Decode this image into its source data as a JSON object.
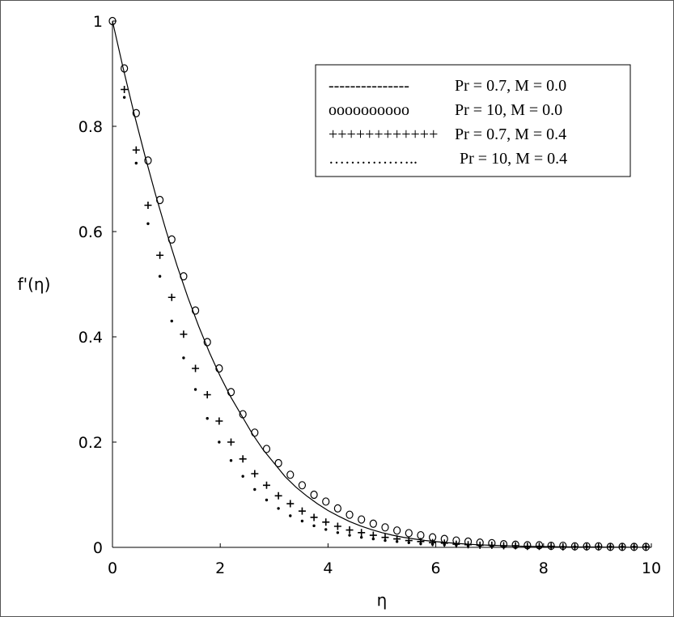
{
  "chart_data": {
    "type": "line",
    "xlabel": "η",
    "ylabel": "f'(η)",
    "xlim": [
      0,
      10
    ],
    "ylim": [
      0,
      1
    ],
    "xticks": [
      "0",
      "2",
      "4",
      "6",
      "8",
      "10"
    ],
    "yticks": [
      "0",
      "0.2",
      "0.4",
      "0.6",
      "0.8",
      "1"
    ],
    "grid": false,
    "legend_position": "top-right",
    "legend": [
      {
        "marker": "---------------",
        "label": "Pr = 0.7, M = 0.0"
      },
      {
        "marker": "oooooooooo",
        "label": "Pr = 10, M = 0.0"
      },
      {
        "marker": "++++++++++++",
        "label": "Pr = 0.7, M = 0.4"
      },
      {
        "marker": "……………..",
        "label": "Pr = 10, M = 0.4"
      }
    ],
    "series": [
      {
        "name": "Pr = 0.7, M = 0.0",
        "style": "solid",
        "x": [
          0,
          0.2,
          0.4,
          0.6,
          0.8,
          1.0,
          1.2,
          1.4,
          1.6,
          1.8,
          2.0,
          2.2,
          2.4,
          2.6,
          2.8,
          3.0,
          3.2,
          3.4,
          3.6,
          3.8,
          4.0,
          4.2,
          4.4,
          4.6,
          4.8,
          5.0,
          5.2,
          5.4,
          5.6,
          5.8,
          6.0,
          6.2,
          6.4,
          6.6,
          6.8,
          7.0,
          7.2,
          7.4,
          7.6,
          7.8,
          8.0,
          8.2,
          8.4,
          8.6,
          8.8,
          9.0,
          9.2,
          9.4,
          9.6,
          9.8,
          10.0
        ],
        "y": [
          1,
          0.91,
          0.825,
          0.745,
          0.67,
          0.6,
          0.535,
          0.475,
          0.42,
          0.37,
          0.325,
          0.285,
          0.25,
          0.215,
          0.185,
          0.16,
          0.135,
          0.115,
          0.098,
          0.083,
          0.07,
          0.059,
          0.049,
          0.041,
          0.034,
          0.028,
          0.023,
          0.019,
          0.016,
          0.013,
          0.011,
          0.009,
          0.0075,
          0.006,
          0.005,
          0.004,
          0.0033,
          0.0027,
          0.0022,
          0.0018,
          0.0015,
          0.0012,
          0.001,
          0.0008,
          0.0007,
          0.0006,
          0.0005,
          0.0004,
          0.0003,
          0.0002,
          0.0002
        ]
      },
      {
        "name": "Pr = 10, M = 0.0",
        "style": "circle",
        "x": [
          0,
          0.22,
          0.44,
          0.66,
          0.88,
          1.1,
          1.32,
          1.54,
          1.76,
          1.98,
          2.2,
          2.42,
          2.64,
          2.86,
          3.08,
          3.3,
          3.52,
          3.74,
          3.96,
          4.18,
          4.4,
          4.62,
          4.84,
          5.06,
          5.28,
          5.5,
          5.72,
          5.94,
          6.16,
          6.38,
          6.6,
          6.82,
          7.04,
          7.26,
          7.48,
          7.7,
          7.92,
          8.14,
          8.36,
          8.58,
          8.8,
          9.02,
          9.24,
          9.46,
          9.68,
          9.9
        ],
        "y": [
          1,
          0.91,
          0.825,
          0.735,
          0.66,
          0.585,
          0.515,
          0.45,
          0.39,
          0.34,
          0.295,
          0.253,
          0.218,
          0.187,
          0.16,
          0.138,
          0.118,
          0.1,
          0.087,
          0.074,
          0.062,
          0.053,
          0.045,
          0.038,
          0.032,
          0.027,
          0.023,
          0.019,
          0.016,
          0.013,
          0.011,
          0.009,
          0.008,
          0.006,
          0.005,
          0.004,
          0.004,
          0.003,
          0.003,
          0.002,
          0.002,
          0.002,
          0.001,
          0.001,
          0.001,
          0.001
        ]
      },
      {
        "name": "Pr = 0.7, M = 0.4",
        "style": "plus",
        "x": [
          0.22,
          0.44,
          0.66,
          0.88,
          1.1,
          1.32,
          1.54,
          1.76,
          1.98,
          2.2,
          2.42,
          2.64,
          2.86,
          3.08,
          3.3,
          3.52,
          3.74,
          3.96,
          4.18,
          4.4,
          4.62,
          4.84,
          5.06,
          5.28,
          5.5,
          5.72,
          5.94,
          6.16,
          6.38,
          6.6,
          6.82,
          7.04,
          7.26,
          7.48,
          7.7,
          7.92,
          8.14,
          8.36,
          8.58,
          8.8,
          9.02,
          9.24,
          9.46,
          9.68,
          9.9
        ],
        "y": [
          0.87,
          0.755,
          0.65,
          0.555,
          0.475,
          0.405,
          0.34,
          0.29,
          0.24,
          0.2,
          0.168,
          0.14,
          0.118,
          0.098,
          0.083,
          0.069,
          0.057,
          0.048,
          0.04,
          0.033,
          0.028,
          0.023,
          0.019,
          0.016,
          0.013,
          0.011,
          0.009,
          0.008,
          0.006,
          0.005,
          0.004,
          0.004,
          0.003,
          0.003,
          0.002,
          0.002,
          0.002,
          0.001,
          0.001,
          0.001,
          0.001,
          0.001,
          0.001,
          0.001,
          0.001
        ]
      },
      {
        "name": "Pr = 10, M = 0.4",
        "style": "dot",
        "x": [
          0.22,
          0.44,
          0.66,
          0.88,
          1.1,
          1.32,
          1.54,
          1.76,
          1.98,
          2.2,
          2.42,
          2.64,
          2.86,
          3.08,
          3.3,
          3.52,
          3.74,
          3.96,
          4.18,
          4.4,
          4.62,
          4.84,
          5.06,
          5.28,
          5.5,
          5.72,
          5.94,
          6.16,
          6.38,
          6.6,
          6.82,
          7.04,
          7.26,
          7.48,
          7.7,
          7.92,
          8.14,
          8.36,
          8.58,
          8.8,
          9.02,
          9.24,
          9.46,
          9.68,
          9.9
        ],
        "y": [
          0.855,
          0.73,
          0.615,
          0.515,
          0.43,
          0.36,
          0.3,
          0.245,
          0.2,
          0.165,
          0.135,
          0.11,
          0.09,
          0.074,
          0.06,
          0.05,
          0.041,
          0.034,
          0.028,
          0.023,
          0.019,
          0.016,
          0.013,
          0.011,
          0.009,
          0.007,
          0.006,
          0.005,
          0.004,
          0.003,
          0.003,
          0.002,
          0.002,
          0.002,
          0.001,
          0.001,
          0.001,
          0.001,
          0.001,
          0.001,
          0.001,
          0.001,
          0.001,
          0.001,
          0.001
        ]
      }
    ]
  }
}
